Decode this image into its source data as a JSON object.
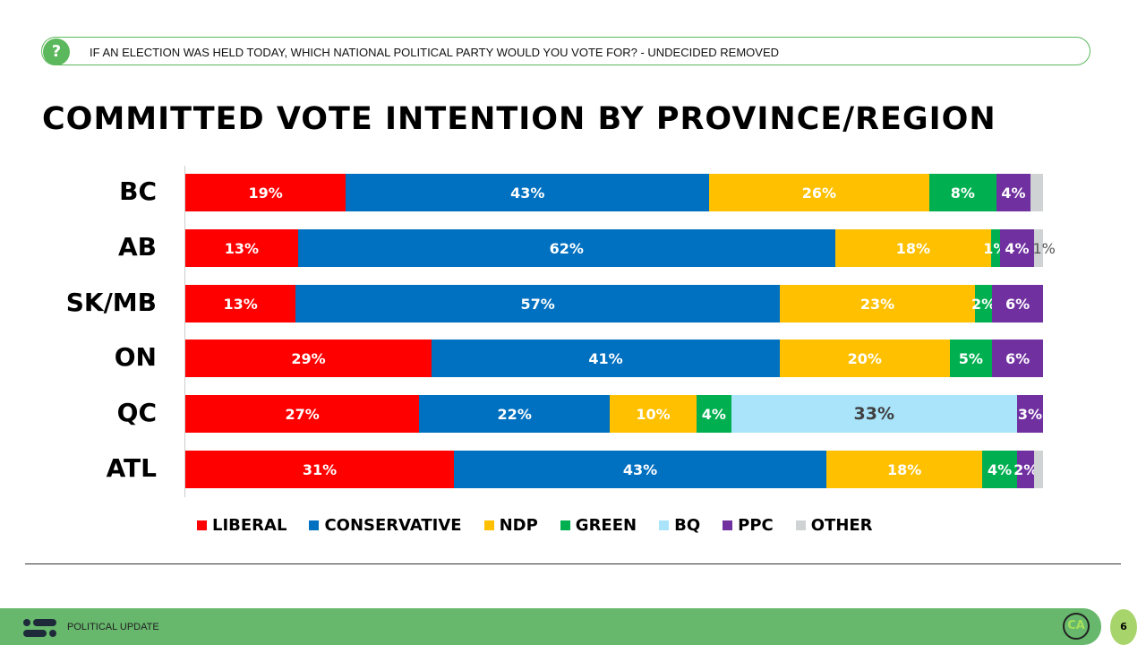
{
  "question": "IF AN ELECTION WAS HELD TODAY, WHICH NATIONAL POLITICAL PARTY WOULD YOU VOTE FOR? - UNDECIDED REMOVED",
  "question_icon": "question-mark-icon",
  "footer": {
    "label": "POLITICAL UPDATE",
    "logo_text": "CA",
    "page_number": "6"
  },
  "chart_data": {
    "type": "bar",
    "orientation": "horizontal",
    "stacked": true,
    "title": "COMMITTED VOTE INTENTION BY PROVINCE/REGION",
    "categories": [
      "BC",
      "AB",
      "SK/MB",
      "ON",
      "QC",
      "ATL"
    ],
    "legend_position": "bottom",
    "grid": false,
    "series": [
      {
        "name": "LIBERAL",
        "color": "#ff0000",
        "values": [
          19,
          13,
          13,
          29,
          27,
          31
        ],
        "labels": [
          "19%",
          "13%",
          "13%",
          "29%",
          "27%",
          "31%"
        ]
      },
      {
        "name": "CONSERVATIVE",
        "color": "#0070c0",
        "values": [
          43,
          62,
          57,
          41,
          22,
          43
        ],
        "labels": [
          "43%",
          "62%",
          "57%",
          "41%",
          "22%",
          "43%"
        ]
      },
      {
        "name": "NDP",
        "color": "#ffc000",
        "values": [
          26,
          18,
          23,
          20,
          10,
          18
        ],
        "labels": [
          "26%",
          "18%",
          "23%",
          "20%",
          "10%",
          "18%"
        ]
      },
      {
        "name": "GREEN",
        "color": "#00b050",
        "values": [
          8,
          1,
          2,
          5,
          4,
          4
        ],
        "labels": [
          "8%",
          "1%",
          "2%",
          "5%",
          "4%",
          "4%"
        ]
      },
      {
        "name": "BQ",
        "color": "#a9e4fb",
        "values": [
          0,
          0,
          0,
          0,
          33,
          0
        ],
        "labels": [
          null,
          null,
          null,
          null,
          "33%",
          null
        ]
      },
      {
        "name": "PPC",
        "color": "#7030a0",
        "values": [
          4,
          4,
          6,
          6,
          3,
          2
        ],
        "labels": [
          "4%",
          "4%",
          "6%",
          "6%",
          "3%",
          "2%"
        ]
      },
      {
        "name": "OTHER",
        "color": "#d0d3d4",
        "values": [
          1.5,
          1,
          0,
          0,
          0,
          1
        ],
        "labels": [
          null,
          "1%",
          null,
          null,
          null,
          null
        ]
      }
    ]
  }
}
